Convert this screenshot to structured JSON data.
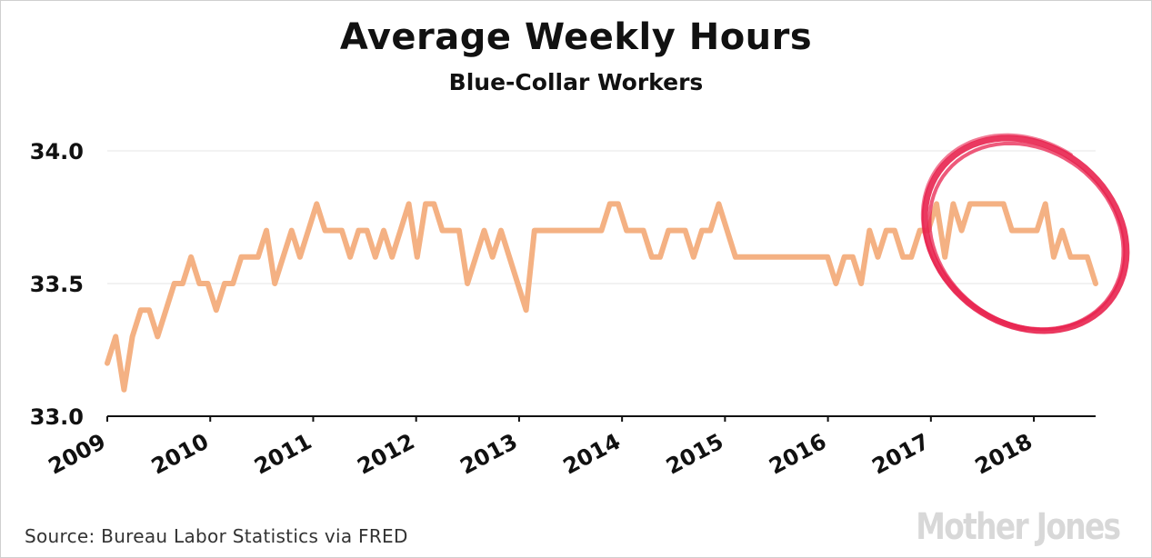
{
  "chart_data": {
    "type": "line",
    "title": "Average Weekly Hours",
    "subtitle": "Blue-Collar Workers",
    "xlabel": "",
    "ylabel": "",
    "x_start": 2009,
    "x_end": 2018.6,
    "ylim": [
      33.0,
      34.0
    ],
    "yticks": [
      {
        "value": 33.0,
        "label": "33.0"
      },
      {
        "value": 33.5,
        "label": "33.5"
      },
      {
        "value": 34.0,
        "label": "34.0"
      }
    ],
    "xticks": [
      {
        "value": 2009,
        "label": "2009"
      },
      {
        "value": 2010,
        "label": "2010"
      },
      {
        "value": 2011,
        "label": "2011"
      },
      {
        "value": 2012,
        "label": "2012"
      },
      {
        "value": 2013,
        "label": "2013"
      },
      {
        "value": 2014,
        "label": "2014"
      },
      {
        "value": 2015,
        "label": "2015"
      },
      {
        "value": 2016,
        "label": "2016"
      },
      {
        "value": 2017,
        "label": "2017"
      },
      {
        "value": 2018,
        "label": "2018"
      }
    ],
    "grid": true,
    "line_color": "#f4b183",
    "annotation_color": "#e8234f",
    "series": [
      {
        "name": "",
        "values": [
          33.2,
          33.3,
          33.1,
          33.3,
          33.4,
          33.4,
          33.3,
          33.4,
          33.5,
          33.5,
          33.6,
          33.5,
          33.5,
          33.4,
          33.5,
          33.5,
          33.6,
          33.6,
          33.6,
          33.7,
          33.5,
          33.6,
          33.7,
          33.6,
          33.7,
          33.8,
          33.7,
          33.7,
          33.7,
          33.6,
          33.7,
          33.7,
          33.6,
          33.7,
          33.6,
          33.7,
          33.8,
          33.6,
          33.8,
          33.8,
          33.7,
          33.7,
          33.7,
          33.5,
          33.6,
          33.7,
          33.6,
          33.7,
          33.6,
          33.5,
          33.4,
          33.7,
          33.7,
          33.7,
          33.7,
          33.7,
          33.7,
          33.7,
          33.7,
          33.7,
          33.8,
          33.8,
          33.7,
          33.7,
          33.7,
          33.6,
          33.6,
          33.7,
          33.7,
          33.7,
          33.6,
          33.7,
          33.7,
          33.8,
          33.7,
          33.6,
          33.6,
          33.6,
          33.6,
          33.6,
          33.6,
          33.6,
          33.6,
          33.6,
          33.6,
          33.6,
          33.6,
          33.5,
          33.6,
          33.6,
          33.5,
          33.7,
          33.6,
          33.7,
          33.7,
          33.6,
          33.6,
          33.7,
          33.7,
          33.8,
          33.6,
          33.8,
          33.7,
          33.8,
          33.8,
          33.8,
          33.8,
          33.8,
          33.7,
          33.7,
          33.7,
          33.7,
          33.8,
          33.6,
          33.7,
          33.6,
          33.6,
          33.6,
          33.5
        ]
      }
    ]
  },
  "source": "Source: Bureau Labor Statistics via FRED",
  "logo": "MotherJones"
}
